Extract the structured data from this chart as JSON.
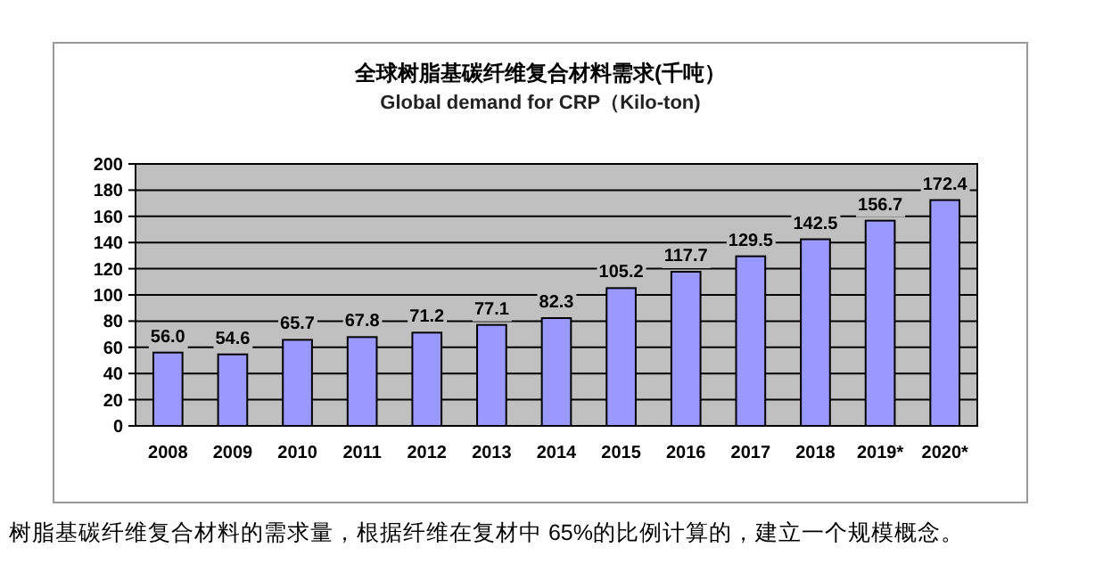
{
  "chart_data": {
    "type": "bar",
    "title": "全球树脂基碳纤维复合材料需求(千吨）",
    "subtitle": "Global demand for CRP（Kilo-ton)",
    "categories": [
      "2008",
      "2009",
      "2010",
      "2011",
      "2012",
      "2013",
      "2014",
      "2015",
      "2016",
      "2017",
      "2018",
      "2019*",
      "2020*"
    ],
    "values": [
      56.0,
      54.6,
      65.7,
      67.8,
      71.2,
      77.1,
      82.3,
      105.2,
      117.7,
      129.5,
      142.5,
      156.7,
      172.4
    ],
    "value_labels": [
      "56.0",
      "54.6",
      "65.7",
      "67.8",
      "71.2",
      "77.1",
      "82.3",
      "105.2",
      "117.7",
      "129.5",
      "142.5",
      "156.7",
      "172.4"
    ],
    "color": "#9999ff",
    "ylim": [
      0,
      200
    ],
    "yticks": [
      0,
      20,
      40,
      60,
      80,
      100,
      120,
      140,
      160,
      180,
      200
    ],
    "grid": "y",
    "annotations": [
      "树脂基碳纤维复合材料的需求量，根据纤维在复材中 65%的比例计算的，建立一个规模概念。"
    ]
  }
}
